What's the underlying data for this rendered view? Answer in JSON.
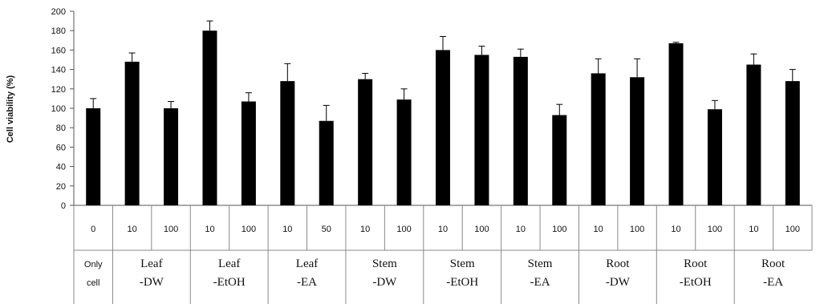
{
  "chart_data": {
    "type": "bar",
    "ylabel": "Cell viability (%)",
    "xlabel": "",
    "ylim": [
      0,
      200
    ],
    "yticks": [
      0,
      20,
      40,
      60,
      80,
      100,
      120,
      140,
      160,
      180,
      200
    ],
    "grid": false,
    "bar_color": "#000000",
    "categories": [
      "0",
      "10",
      "100",
      "10",
      "100",
      "10",
      "50",
      "10",
      "100",
      "10",
      "100",
      "10",
      "100",
      "10",
      "100",
      "10",
      "100",
      "10",
      "100"
    ],
    "values": [
      100,
      148,
      100,
      180,
      107,
      128,
      87,
      130,
      109,
      160,
      155,
      153,
      93,
      136,
      132,
      167,
      99,
      145,
      128
    ],
    "errors": [
      10,
      9,
      7,
      10,
      9,
      18,
      16,
      6,
      11,
      14,
      9,
      8,
      11,
      15,
      19,
      1,
      9,
      11,
      12
    ],
    "groups": [
      {
        "line1": "Only",
        "line2": "cell",
        "span": 1
      },
      {
        "line1": "Leaf",
        "line2": "-DW",
        "span": 2
      },
      {
        "line1": "Leaf",
        "line2": "-EtOH",
        "span": 2
      },
      {
        "line1": "Leaf",
        "line2": "-EA",
        "span": 2
      },
      {
        "line1": "Stem",
        "line2": "-DW",
        "span": 2
      },
      {
        "line1": "Stem",
        "line2": "-EtOH",
        "span": 2
      },
      {
        "line1": "Stem",
        "line2": "-EA",
        "span": 2
      },
      {
        "line1": "Root",
        "line2": "-DW",
        "span": 2
      },
      {
        "line1": "Root",
        "line2": "-EtOH",
        "span": 2
      },
      {
        "line1": "Root",
        "line2": "-EA",
        "span": 2
      }
    ]
  }
}
